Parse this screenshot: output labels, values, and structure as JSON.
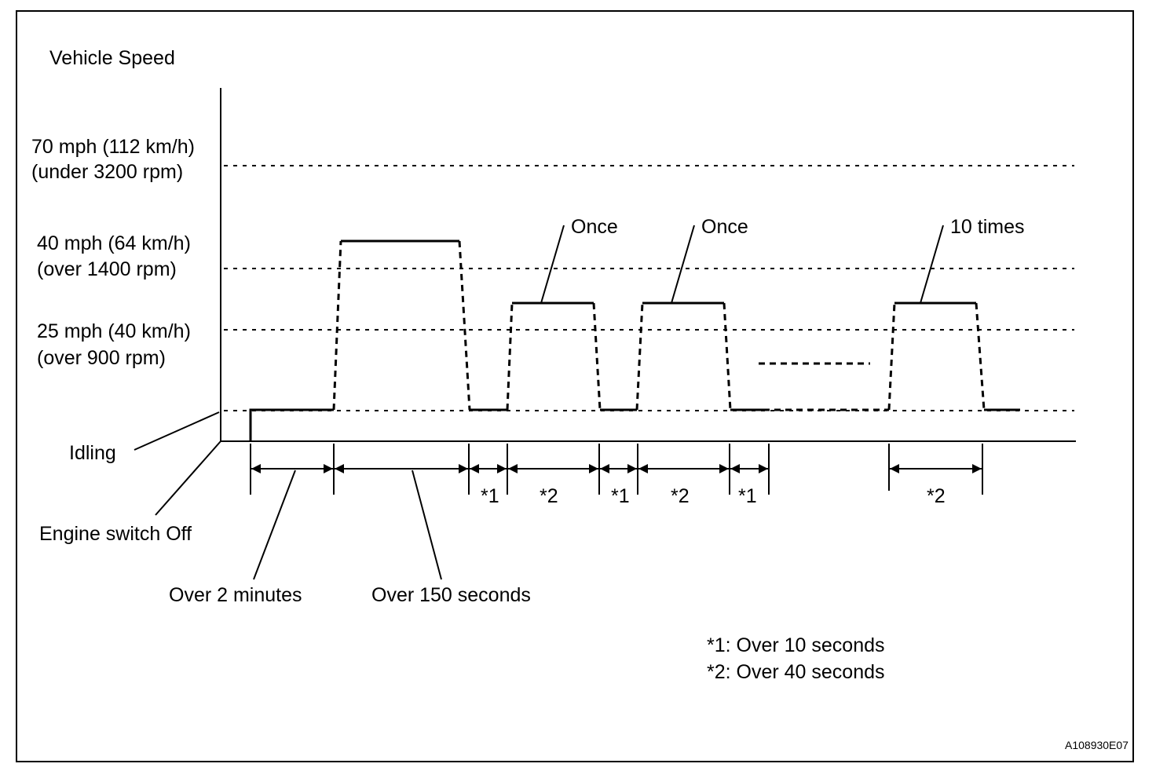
{
  "title": "Vehicle Speed",
  "speed_levels": [
    {
      "line1": "70 mph (112 km/h)",
      "line2": "(under 3200 rpm)"
    },
    {
      "line1": "40 mph (64 km/h)",
      "line2": "(over 1400 rpm)"
    },
    {
      "line1": "25 mph (40 km/h)",
      "line2": "(over 900 rpm)"
    }
  ],
  "idling_label": "Idling",
  "engine_off_label": "Engine switch Off",
  "repeat_labels": [
    "Once",
    "Once",
    "10 times"
  ],
  "interval_labels": [
    "*1",
    "*2",
    "*1",
    "*2",
    "*1",
    "*2"
  ],
  "duration_labels": [
    "Over 2 minutes",
    "Over 150 seconds"
  ],
  "notes": [
    "*1: Over 10 seconds",
    "*2: Over 40 seconds"
  ],
  "figure_code": "A108930E07"
}
